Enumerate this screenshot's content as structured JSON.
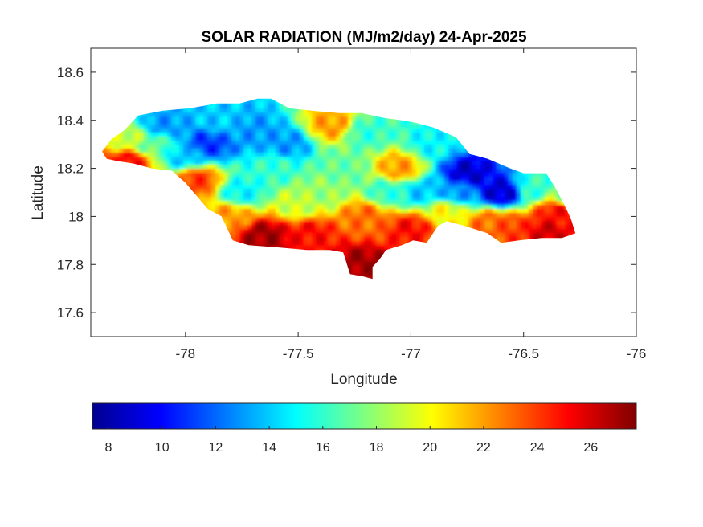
{
  "chart_data": {
    "type": "heatmap",
    "title": "SOLAR RADIATION (MJ/m2/day) 24-Apr-2025",
    "xlabel": "Longitude",
    "ylabel": "Latitude",
    "xlim": [
      -78.42,
      -76.0
    ],
    "ylim": [
      17.5,
      18.7
    ],
    "xticks": [
      -78,
      -77.5,
      -77,
      -76.5,
      -76
    ],
    "yticks": [
      17.6,
      17.8,
      18,
      18.2,
      18.4,
      18.6
    ],
    "colormap": "jet",
    "clim": [
      7.4,
      27.7
    ],
    "colorbar": {
      "location": "south",
      "ticks": [
        8,
        10,
        12,
        14,
        16,
        18,
        20,
        22,
        24,
        26
      ]
    },
    "grid": false,
    "region_outline": [
      [
        -78.37,
        18.27
      ],
      [
        -78.33,
        18.32
      ],
      [
        -78.27,
        18.36
      ],
      [
        -78.21,
        18.42
      ],
      [
        -78.1,
        18.44
      ],
      [
        -77.98,
        18.45
      ],
      [
        -77.86,
        18.47
      ],
      [
        -77.76,
        18.47
      ],
      [
        -77.68,
        18.49
      ],
      [
        -77.62,
        18.49
      ],
      [
        -77.54,
        18.45
      ],
      [
        -77.44,
        18.44
      ],
      [
        -77.32,
        18.43
      ],
      [
        -77.22,
        18.43
      ],
      [
        -77.12,
        18.41
      ],
      [
        -77.04,
        18.4
      ],
      [
        -76.98,
        18.39
      ],
      [
        -76.9,
        18.37
      ],
      [
        -76.8,
        18.33
      ],
      [
        -76.74,
        18.26
      ],
      [
        -76.66,
        18.24
      ],
      [
        -76.56,
        18.2
      ],
      [
        -76.5,
        18.18
      ],
      [
        -76.4,
        18.18
      ],
      [
        -76.36,
        18.12
      ],
      [
        -76.32,
        18.05
      ],
      [
        -76.29,
        17.99
      ],
      [
        -76.27,
        17.93
      ],
      [
        -76.33,
        17.91
      ],
      [
        -76.42,
        17.91
      ],
      [
        -76.52,
        17.9
      ],
      [
        -76.6,
        17.89
      ],
      [
        -76.66,
        17.93
      ],
      [
        -76.76,
        17.96
      ],
      [
        -76.84,
        17.98
      ],
      [
        -76.88,
        17.96
      ],
      [
        -76.93,
        17.89
      ],
      [
        -76.99,
        17.9
      ],
      [
        -77.04,
        17.88
      ],
      [
        -77.11,
        17.86
      ],
      [
        -77.14,
        17.82
      ],
      [
        -77.17,
        17.79
      ],
      [
        -77.17,
        17.74
      ],
      [
        -77.21,
        17.75
      ],
      [
        -77.27,
        17.76
      ],
      [
        -77.3,
        17.85
      ],
      [
        -77.36,
        17.86
      ],
      [
        -77.46,
        17.86
      ],
      [
        -77.58,
        17.87
      ],
      [
        -77.72,
        17.88
      ],
      [
        -77.79,
        17.9
      ],
      [
        -77.84,
        18.0
      ],
      [
        -77.9,
        18.03
      ],
      [
        -78.0,
        18.14
      ],
      [
        -78.06,
        18.19
      ],
      [
        -78.15,
        18.2
      ],
      [
        -78.23,
        18.22
      ],
      [
        -78.3,
        18.23
      ],
      [
        -78.35,
        18.24
      ]
    ],
    "field_points": [
      {
        "lon": -78.25,
        "lat": 18.32,
        "value": 19
      },
      {
        "lon": -78.1,
        "lat": 18.38,
        "value": 13
      },
      {
        "lon": -77.9,
        "lat": 18.3,
        "value": 11
      },
      {
        "lon": -77.7,
        "lat": 18.35,
        "value": 13
      },
      {
        "lon": -77.55,
        "lat": 18.3,
        "value": 13
      },
      {
        "lon": -77.35,
        "lat": 18.38,
        "value": 22
      },
      {
        "lon": -77.2,
        "lat": 18.35,
        "value": 16
      },
      {
        "lon": -77.05,
        "lat": 18.2,
        "value": 22
      },
      {
        "lon": -76.9,
        "lat": 18.3,
        "value": 15
      },
      {
        "lon": -76.75,
        "lat": 18.18,
        "value": 9
      },
      {
        "lon": -76.6,
        "lat": 18.1,
        "value": 9
      },
      {
        "lon": -76.45,
        "lat": 18.12,
        "value": 16
      },
      {
        "lon": -76.35,
        "lat": 18.02,
        "value": 25
      },
      {
        "lon": -76.4,
        "lat": 17.93,
        "value": 26
      },
      {
        "lon": -76.65,
        "lat": 17.97,
        "value": 23
      },
      {
        "lon": -76.85,
        "lat": 18.02,
        "value": 20
      },
      {
        "lon": -77.0,
        "lat": 17.95,
        "value": 25
      },
      {
        "lon": -77.2,
        "lat": 18.0,
        "value": 23
      },
      {
        "lon": -77.22,
        "lat": 17.8,
        "value": 27
      },
      {
        "lon": -77.45,
        "lat": 17.93,
        "value": 25
      },
      {
        "lon": -77.65,
        "lat": 17.92,
        "value": 27
      },
      {
        "lon": -77.5,
        "lat": 18.05,
        "value": 19
      },
      {
        "lon": -77.75,
        "lat": 18.1,
        "value": 15
      },
      {
        "lon": -77.95,
        "lat": 18.15,
        "value": 24
      },
      {
        "lon": -78.25,
        "lat": 18.23,
        "value": 25
      },
      {
        "lon": -77.3,
        "lat": 18.2,
        "value": 17
      },
      {
        "lon": -77.1,
        "lat": 18.1,
        "value": 16
      },
      {
        "lon": -77.6,
        "lat": 18.2,
        "value": 16
      },
      {
        "lon": -77.85,
        "lat": 18.4,
        "value": 14
      },
      {
        "lon": -78.0,
        "lat": 18.25,
        "value": 14
      },
      {
        "lon": -76.95,
        "lat": 18.1,
        "value": 14
      },
      {
        "lon": -76.8,
        "lat": 18.1,
        "value": 13
      },
      {
        "lon": -77.4,
        "lat": 18.1,
        "value": 18
      },
      {
        "lon": -76.55,
        "lat": 17.95,
        "value": 24
      },
      {
        "lon": -78.15,
        "lat": 18.3,
        "value": 17
      },
      {
        "lon": -77.8,
        "lat": 18.0,
        "value": 22
      },
      {
        "lon": -76.3,
        "lat": 18.08,
        "value": 18
      }
    ]
  }
}
